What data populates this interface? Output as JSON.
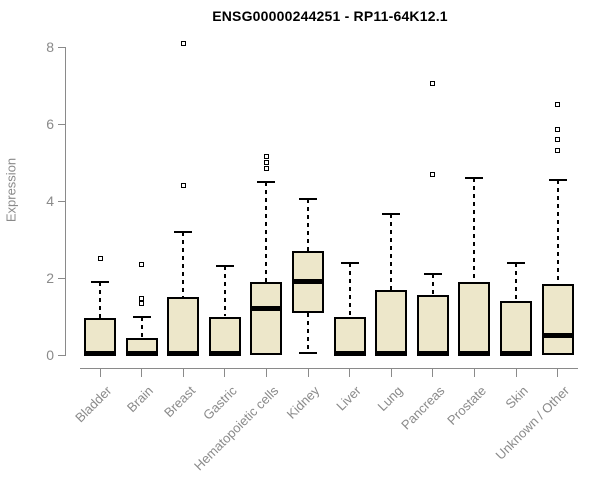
{
  "chart_data": {
    "type": "boxplot",
    "title": "ENSG00000244251 - RP11-64K12.1",
    "xlabel": "",
    "ylabel": "Expression",
    "ylim": [
      0,
      8
    ],
    "yticks": [
      0,
      2,
      4,
      6,
      8
    ],
    "grid": false,
    "legend": false,
    "categories": [
      "Bladder",
      "Brain",
      "Breast",
      "Gastric",
      "Hematopoietic cells",
      "Kidney",
      "Liver",
      "Lung",
      "Pancreas",
      "Prostate",
      "Skin",
      "Unknown / Other"
    ],
    "series": [
      {
        "category": "Bladder",
        "whisker_low": 0,
        "q1": 0,
        "median": 0.05,
        "q3": 0.95,
        "whisker_high": 1.9,
        "outliers": [
          2.5
        ]
      },
      {
        "category": "Brain",
        "whisker_low": 0,
        "q1": 0,
        "median": 0.05,
        "q3": 0.45,
        "whisker_high": 1.0,
        "outliers": [
          2.35,
          1.48,
          1.35
        ]
      },
      {
        "category": "Breast",
        "whisker_low": 0,
        "q1": 0,
        "median": 0.05,
        "q3": 1.5,
        "whisker_high": 3.2,
        "outliers": [
          8.1,
          4.4
        ]
      },
      {
        "category": "Gastric",
        "whisker_low": 0,
        "q1": 0,
        "median": 0.05,
        "q3": 1.0,
        "whisker_high": 2.3,
        "outliers": []
      },
      {
        "category": "Hematopoietic cells",
        "whisker_low": 0,
        "q1": 0,
        "median": 1.2,
        "q3": 1.9,
        "whisker_high": 4.5,
        "outliers": [
          5.15,
          5.0,
          4.85
        ]
      },
      {
        "category": "Kidney",
        "whisker_low": 0.05,
        "q1": 1.1,
        "median": 1.9,
        "q3": 2.7,
        "whisker_high": 4.05,
        "outliers": []
      },
      {
        "category": "Liver",
        "whisker_low": 0,
        "q1": 0,
        "median": 0.05,
        "q3": 1.0,
        "whisker_high": 2.4,
        "outliers": []
      },
      {
        "category": "Lung",
        "whisker_low": 0,
        "q1": 0,
        "median": 0.05,
        "q3": 1.7,
        "whisker_high": 3.65,
        "outliers": []
      },
      {
        "category": "Pancreas",
        "whisker_low": 0,
        "q1": 0,
        "median": 0.05,
        "q3": 1.55,
        "whisker_high": 2.1,
        "outliers": [
          7.05,
          4.7
        ]
      },
      {
        "category": "Prostate",
        "whisker_low": 0,
        "q1": 0,
        "median": 0.05,
        "q3": 1.9,
        "whisker_high": 4.6,
        "outliers": []
      },
      {
        "category": "Skin",
        "whisker_low": 0,
        "q1": 0,
        "median": 0.05,
        "q3": 1.4,
        "whisker_high": 2.4,
        "outliers": []
      },
      {
        "category": "Unknown / Other",
        "whisker_low": 0,
        "q1": 0,
        "median": 0.5,
        "q3": 1.85,
        "whisker_high": 4.55,
        "outliers": [
          6.5,
          5.85,
          5.6,
          5.3
        ]
      }
    ],
    "colors": {
      "box_fill": "#EDE7CA",
      "box_border": "#000000",
      "median": "#000000",
      "whisker": "#000000",
      "axis": "#8a8a8a",
      "tick_label": "#8a8a8a",
      "title": "#000000",
      "background": "#ffffff"
    }
  }
}
